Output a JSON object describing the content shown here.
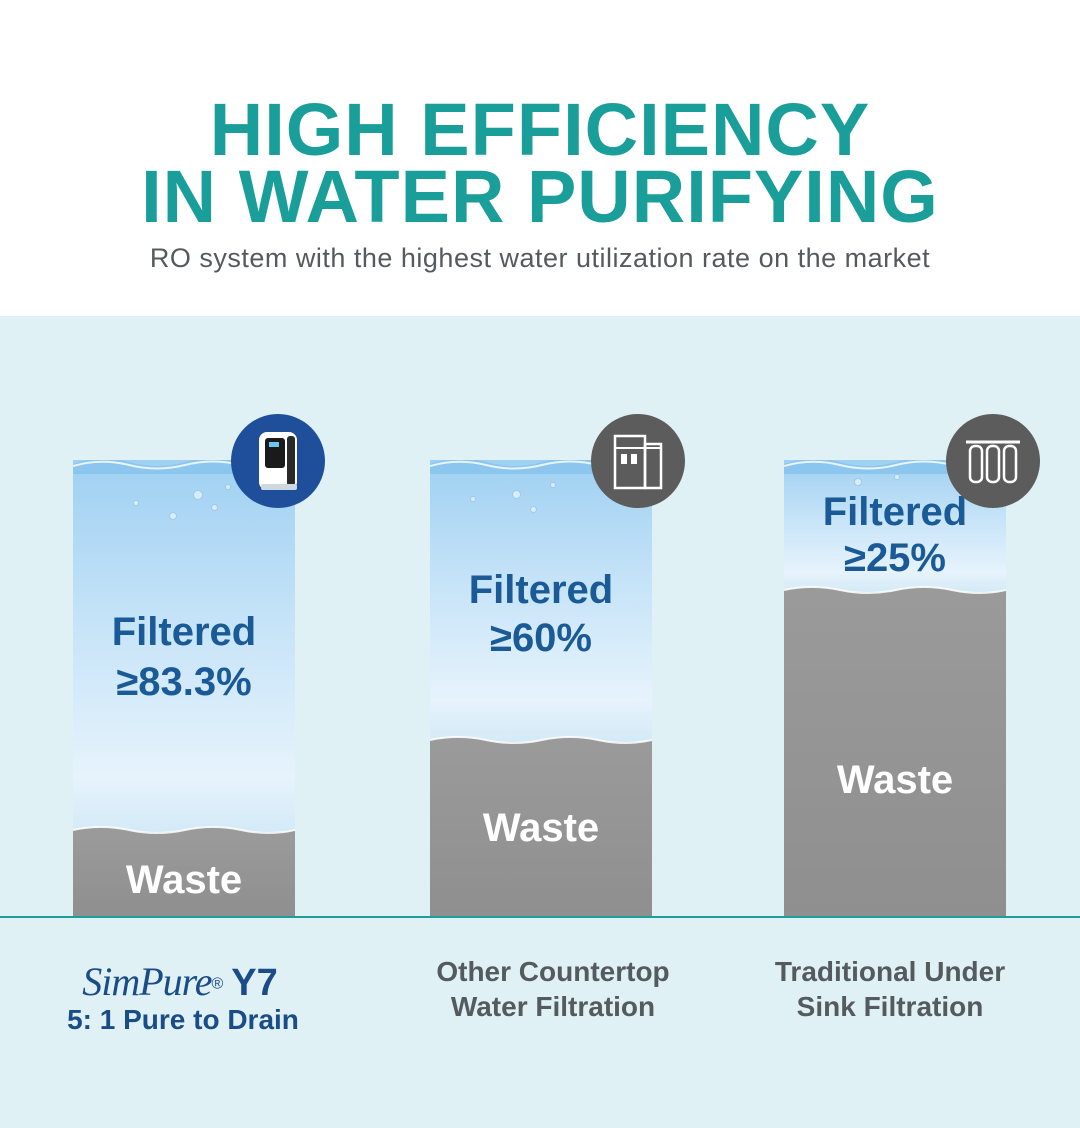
{
  "header": {
    "title_line1": "HIGH EFFICIENCY",
    "title_line2": "IN WATER PURIFYING",
    "subtitle": "RO system with the highest water utilization rate on the market",
    "title_color": "#1a9e9a"
  },
  "columns": [
    {
      "filtered_label": "Filtered",
      "filtered_value": "≥83.3%",
      "filtered_fraction": 0.833,
      "waste_label": "Waste",
      "icon": "countertop-purifier-icon",
      "icon_bg": "#1f4f9a",
      "brand": "SimPure",
      "registered": "®",
      "model": "Y7",
      "ratio": "5: 1 Pure to Drain"
    },
    {
      "filtered_label": "Filtered",
      "filtered_value": "≥60%",
      "filtered_fraction": 0.6,
      "waste_label": "Waste",
      "icon": "countertop-filter-icon",
      "icon_bg": "#5c5c5c",
      "caption_line1": "Other Countertop",
      "caption_line2": "Water Filtration"
    },
    {
      "filtered_label": "Filtered",
      "filtered_value": "≥25%",
      "filtered_fraction": 0.25,
      "waste_label": "Waste",
      "icon": "under-sink-filters-icon",
      "icon_bg": "#5c5c5c",
      "caption_line1": "Traditional Under",
      "caption_line2": "Sink Filtration"
    }
  ],
  "colors": {
    "panel_bg": "#dff1f4",
    "filtered_text": "#1a5a96",
    "waste": "#8f8f8f",
    "caption_text": "#555a5e",
    "brand": "#1a4c88"
  }
}
